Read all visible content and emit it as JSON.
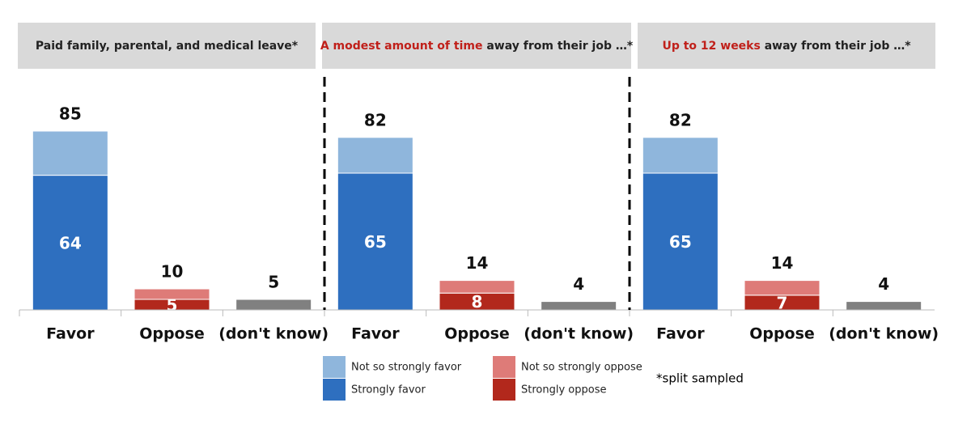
{
  "chart_data": [
    {
      "type": "bar",
      "stacked": true,
      "title": [
        {
          "text": "Paid family, parental, and medical leave*"
        }
      ],
      "categories": [
        "Favor",
        "Oppose",
        "(don't know)"
      ],
      "series": [
        {
          "name": "Strongly favor",
          "color": "#2e6fbf",
          "show_labels": true,
          "values": [
            64,
            null,
            null
          ]
        },
        {
          "name": "Not so strongly favor",
          "color": "#8fb6dc",
          "values": [
            21,
            null,
            null
          ]
        },
        {
          "name": "Strongly oppose",
          "color": "#b2281c",
          "show_labels": true,
          "values": [
            null,
            5,
            null
          ]
        },
        {
          "name": "Not so strongly oppose",
          "color": "#de7b78",
          "values": [
            null,
            5,
            null
          ]
        },
        {
          "color": "#808080",
          "show_totals": true,
          "values": [
            null,
            null,
            5
          ]
        }
      ],
      "totals": [
        85,
        10,
        null
      ],
      "ylim": [
        0,
        100
      ]
    },
    {
      "type": "bar",
      "stacked": true,
      "title": [
        {
          "text": "A modest amount of time",
          "color": "#c0201a"
        },
        {
          "text": " away from their job …*"
        }
      ],
      "categories": [
        "Favor",
        "Oppose",
        "(don't know)"
      ],
      "series": [
        {
          "name": "Strongly favor",
          "color": "#2e6fbf",
          "show_labels": true,
          "values": [
            65,
            null,
            null
          ]
        },
        {
          "name": "Not so strongly favor",
          "color": "#8fb6dc",
          "values": [
            17,
            null,
            null
          ]
        },
        {
          "name": "Strongly oppose",
          "color": "#b2281c",
          "show_labels": true,
          "values": [
            null,
            8,
            null
          ]
        },
        {
          "name": "Not so strongly oppose",
          "color": "#de7b78",
          "values": [
            null,
            6,
            null
          ]
        },
        {
          "color": "#808080",
          "show_totals": true,
          "values": [
            null,
            null,
            4
          ]
        }
      ],
      "totals": [
        82,
        14,
        null
      ],
      "ylim": [
        0,
        100
      ]
    },
    {
      "type": "bar",
      "stacked": true,
      "title": [
        {
          "text": "Up to 12 weeks",
          "color": "#c0201a"
        },
        {
          "text": " away from their job …*"
        }
      ],
      "categories": [
        "Favor",
        "Oppose",
        "(don't know)"
      ],
      "series": [
        {
          "name": "Strongly favor",
          "color": "#2e6fbf",
          "show_labels": true,
          "values": [
            65,
            null,
            null
          ]
        },
        {
          "name": "Not so strongly favor",
          "color": "#8fb6dc",
          "values": [
            17,
            null,
            null
          ]
        },
        {
          "name": "Strongly oppose",
          "color": "#b2281c",
          "show_labels": true,
          "values": [
            null,
            7,
            null
          ]
        },
        {
          "name": "Not so strongly oppose",
          "color": "#de7b78",
          "values": [
            null,
            7,
            null
          ]
        },
        {
          "color": "#808080",
          "show_totals": true,
          "values": [
            null,
            null,
            4
          ]
        }
      ],
      "totals": [
        82,
        14,
        null
      ],
      "ylim": [
        0,
        100
      ]
    }
  ],
  "note": "*split sampled"
}
